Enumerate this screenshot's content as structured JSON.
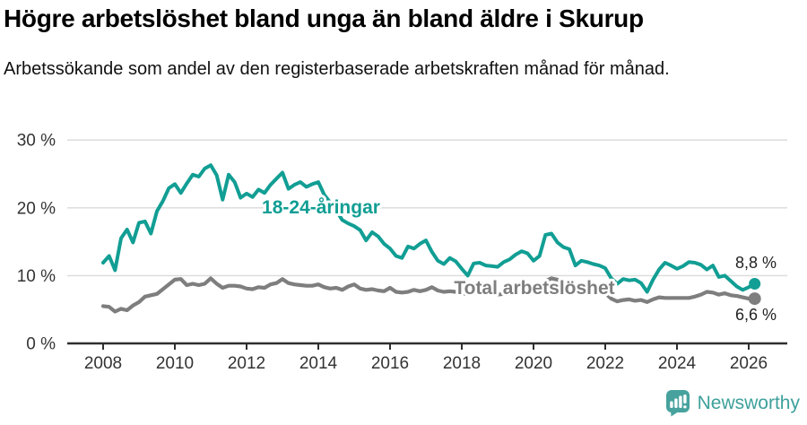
{
  "title": "Högre arbetslöshet bland unga än bland äldre i Skurup",
  "subtitle": "Arbetssökande som andel av den registerbaserade arbetskraften månad för månad.",
  "footer": {
    "brand": "Newsworthy",
    "logo_icon": "bar-chart-speech-bubble-icon"
  },
  "colors": {
    "youth_line": "#119e94",
    "total_line": "#7e7e7e",
    "grid": "#dadada",
    "axis": "#2f2f2f",
    "tick_text": "#333333",
    "end_label_text": "#222222",
    "brand_teal": "#3da09b",
    "logo_box": "#47a29e"
  },
  "chart_data": {
    "type": "line",
    "title": "Högre arbetslöshet bland unga än bland äldre i Skurup",
    "subtitle": "Arbetssökande som andel av den registerbaserade arbetskraften månad för månad.",
    "grid": "horizontal-only",
    "legend_position": "inline-labels",
    "x_start_year": 2008,
    "points_per_year": 6,
    "x_tick_years": [
      2008,
      2010,
      2012,
      2014,
      2016,
      2018,
      2020,
      2022,
      2024,
      2026
    ],
    "y_ticks": [
      {
        "value": 0,
        "label": "0 %"
      },
      {
        "value": 10,
        "label": "10 %"
      },
      {
        "value": 20,
        "label": "20 %"
      },
      {
        "value": 30,
        "label": "30 %"
      }
    ],
    "ylim": [
      0,
      30
    ],
    "series": [
      {
        "name": "18-24-åringar",
        "color": "#119e94",
        "end_label": "8,8 %",
        "end_value": 8.8,
        "values": [
          11.9,
          12.9,
          10.8,
          15.5,
          16.8,
          14.9,
          17.8,
          18.0,
          16.2,
          19.5,
          21.0,
          22.9,
          23.5,
          22.2,
          23.6,
          24.9,
          24.6,
          25.8,
          26.3,
          24.8,
          21.2,
          24.9,
          23.8,
          21.5,
          22.1,
          21.6,
          22.7,
          22.2,
          23.4,
          24.3,
          25.2,
          22.8,
          23.4,
          23.8,
          23.1,
          23.5,
          23.8,
          21.9,
          20.8,
          19.6,
          18.2,
          17.7,
          17.3,
          16.7,
          15.2,
          16.4,
          15.8,
          14.7,
          14.0,
          12.9,
          12.6,
          14.3,
          14.0,
          14.7,
          15.2,
          13.5,
          12.2,
          11.7,
          12.6,
          12.1,
          11.0,
          10.0,
          11.8,
          11.9,
          11.5,
          11.4,
          11.3,
          12.0,
          12.4,
          13.1,
          13.6,
          13.3,
          12.2,
          12.9,
          16.0,
          16.2,
          14.9,
          14.2,
          13.9,
          11.5,
          12.2,
          12.0,
          11.7,
          11.5,
          11.1,
          9.6,
          8.8,
          9.5,
          9.3,
          9.4,
          8.9,
          7.6,
          9.4,
          10.9,
          11.9,
          11.5,
          11.0,
          11.4,
          12.0,
          11.9,
          11.6,
          10.9,
          11.5,
          9.8,
          10.0,
          9.2,
          8.4,
          7.9,
          8.3,
          8.8
        ]
      },
      {
        "name": "Total arbetslöshet",
        "color": "#7e7e7e",
        "end_label": "6,6 %",
        "end_value": 6.6,
        "values": [
          5.5,
          5.4,
          4.7,
          5.1,
          4.9,
          5.6,
          6.1,
          6.9,
          7.1,
          7.3,
          8.0,
          8.7,
          9.4,
          9.5,
          8.6,
          8.8,
          8.6,
          8.8,
          9.6,
          8.8,
          8.2,
          8.5,
          8.5,
          8.4,
          8.1,
          8.0,
          8.3,
          8.2,
          8.7,
          8.9,
          9.5,
          8.9,
          8.7,
          8.6,
          8.5,
          8.5,
          8.7,
          8.3,
          8.1,
          8.2,
          7.9,
          8.4,
          8.7,
          8.1,
          7.9,
          8.0,
          7.8,
          7.7,
          8.2,
          7.6,
          7.5,
          7.6,
          7.9,
          7.7,
          7.9,
          8.3,
          7.8,
          7.6,
          7.7,
          7.6,
          7.4,
          7.3,
          7.5,
          7.3,
          7.2,
          7.3,
          7.2,
          7.3,
          7.4,
          7.5,
          7.4,
          7.6,
          7.7,
          8.0,
          9.2,
          9.6,
          9.4,
          9.0,
          8.8,
          8.4,
          8.1,
          7.9,
          7.6,
          7.5,
          7.4,
          6.6,
          6.2,
          6.4,
          6.5,
          6.3,
          6.4,
          6.1,
          6.5,
          6.8,
          6.7,
          6.7,
          6.7,
          6.7,
          6.7,
          6.9,
          7.2,
          7.6,
          7.5,
          7.2,
          7.4,
          7.1,
          7.0,
          6.8,
          6.6,
          6.6
        ]
      }
    ]
  }
}
